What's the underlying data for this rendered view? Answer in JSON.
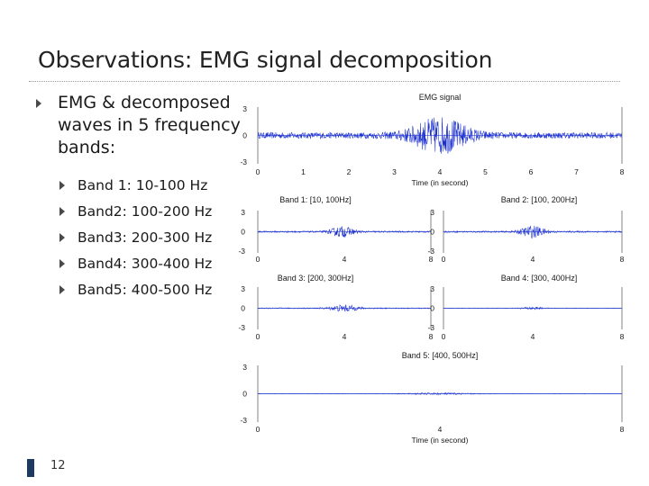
{
  "slide": {
    "title": "Observations: EMG signal decomposition",
    "page_number": "12"
  },
  "bullets": {
    "main": [
      "EMG & decomposed",
      "waves in 5 frequency",
      "bands:"
    ],
    "sub": [
      "Band 1: 10-100 Hz",
      "Band2: 100-200 Hz",
      "Band3: 200-300 Hz",
      "Band4: 300-400 Hz",
      "Band5: 400-500 Hz"
    ]
  },
  "chart_data": [
    {
      "type": "line",
      "title": "EMG signal",
      "xlabel": "Time (in second)",
      "ylabel": "",
      "xlim": [
        0,
        8
      ],
      "ylim": [
        -3,
        3
      ],
      "xticks": [
        "0",
        "1",
        "2",
        "3",
        "4",
        "5",
        "6",
        "7",
        "8"
      ],
      "yticks": [
        "3",
        "0",
        "-3"
      ],
      "series": [
        {
          "name": "EMG",
          "burst_center_s": 4.0,
          "burst_width_s": 1.6,
          "peak_amplitude": 2.2,
          "baseline_amplitude": 0.35
        }
      ]
    },
    {
      "type": "line",
      "title": "Band 1: [10, 100Hz]",
      "xlim": [
        0,
        8
      ],
      "ylim": [
        -3,
        3
      ],
      "xticks": [
        "0",
        "4",
        "8"
      ],
      "yticks": [
        "3",
        "0",
        "-3"
      ],
      "series": [
        {
          "name": "Band 1",
          "burst_center_s": 3.9,
          "burst_width_s": 1.4,
          "peak_amplitude": 0.9,
          "baseline_amplitude": 0.12
        }
      ]
    },
    {
      "type": "line",
      "title": "Band 2: [100, 200Hz]",
      "xlim": [
        0,
        8
      ],
      "ylim": [
        -3,
        3
      ],
      "xticks": [
        "0",
        "4",
        "8"
      ],
      "yticks": [
        "3",
        "0",
        "-3"
      ],
      "series": [
        {
          "name": "Band 2",
          "burst_center_s": 4.0,
          "burst_width_s": 1.4,
          "peak_amplitude": 1.0,
          "baseline_amplitude": 0.12
        }
      ]
    },
    {
      "type": "line",
      "title": "Band 3: [200, 300Hz]",
      "xlim": [
        0,
        8
      ],
      "ylim": [
        -3,
        3
      ],
      "xticks": [
        "0",
        "4",
        "8"
      ],
      "yticks": [
        "3",
        "0",
        "-3"
      ],
      "series": [
        {
          "name": "Band 3",
          "burst_center_s": 4.0,
          "burst_width_s": 1.6,
          "peak_amplitude": 0.6,
          "baseline_amplitude": 0.08
        }
      ]
    },
    {
      "type": "line",
      "title": "Band 4: [300, 400Hz]",
      "xlim": [
        0,
        8
      ],
      "ylim": [
        -3,
        3
      ],
      "xticks": [
        "0",
        "4",
        "8"
      ],
      "yticks": [
        "3",
        "0",
        "-3"
      ],
      "series": [
        {
          "name": "Band 4",
          "burst_center_s": 4.0,
          "burst_width_s": 1.2,
          "peak_amplitude": 0.25,
          "baseline_amplitude": 0.05
        }
      ]
    },
    {
      "type": "line",
      "title": "Band 5: [400, 500Hz]",
      "xlabel": "Time (in second)",
      "xlim": [
        0,
        8
      ],
      "ylim": [
        -3,
        3
      ],
      "xticks": [
        "0",
        "4",
        "8"
      ],
      "yticks": [
        "3",
        "0",
        "-3"
      ],
      "series": [
        {
          "name": "Band 5",
          "burst_center_s": 4.0,
          "burst_width_s": 1.8,
          "peak_amplitude": 0.12,
          "baseline_amplitude": 0.03
        }
      ]
    }
  ],
  "colors": {
    "signal": "#1a2fcf",
    "axis": "#333333",
    "footer_bar": "#1f3a5f"
  }
}
